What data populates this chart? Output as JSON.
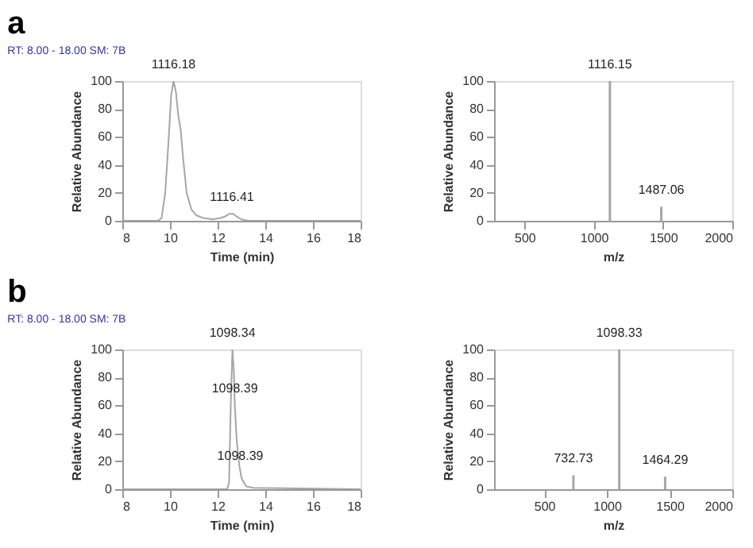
{
  "chart_data": [
    {
      "type": "line",
      "title": "a",
      "subtitle": "RT: 8.00 - 18.00    SM: 7B",
      "xlabel": "Time (min)",
      "ylabel": "Relative Abundance",
      "xlim": [
        8,
        18
      ],
      "xticks": [
        8,
        10,
        12,
        14,
        16,
        18
      ],
      "ylim": [
        0,
        100
      ],
      "yticks": [
        0,
        20,
        40,
        60,
        80,
        100
      ],
      "grid": false,
      "legend": false,
      "series": [
        {
          "color": "#a6a6a6",
          "x": [
            8,
            9.5,
            9.65,
            9.8,
            9.95,
            10.05,
            10.15,
            10.25,
            10.35,
            10.45,
            10.55,
            10.7,
            10.9,
            11.1,
            11.4,
            11.8,
            12.1,
            12.3,
            12.5,
            12.65,
            12.8,
            13.0,
            13.3,
            18
          ],
          "values": [
            0,
            0,
            2,
            20,
            60,
            90,
            100,
            92,
            75,
            65,
            45,
            20,
            8,
            4,
            2,
            1,
            2,
            3,
            5,
            5,
            3,
            1,
            0,
            0
          ]
        }
      ],
      "annotations": [
        {
          "text": "1116.18",
          "x": 10.15,
          "y": 100
        },
        {
          "text": "1116.41",
          "x": 12.6,
          "y": 5
        }
      ]
    },
    {
      "type": "bar",
      "xlabel": "m/z",
      "ylabel": "Relative Abundance",
      "xlim": [
        280,
        2000
      ],
      "xticks": [
        500,
        1000,
        1500,
        2000
      ],
      "ylim": [
        0,
        100
      ],
      "yticks": [
        0,
        20,
        40,
        60,
        80,
        100
      ],
      "grid": false,
      "legend": false,
      "series": [
        {
          "color": "#a6a6a6",
          "x": [
            1116.15,
            1487.06
          ],
          "values": [
            100,
            10
          ]
        }
      ],
      "annotations": [
        {
          "text": "1116.15",
          "x": 1116.15,
          "y": 100
        },
        {
          "text": "1487.06",
          "x": 1487.06,
          "y": 10
        }
      ]
    },
    {
      "type": "line",
      "title": "b",
      "subtitle": "RT: 8.00 - 18.00    SM: 7B",
      "xlabel": "Time (min)",
      "ylabel": "Relative Abundance",
      "xlim": [
        8,
        18
      ],
      "xticks": [
        8,
        10,
        12,
        14,
        16,
        18
      ],
      "ylim": [
        0,
        100
      ],
      "yticks": [
        0,
        20,
        40,
        60,
        80,
        100
      ],
      "grid": false,
      "legend": false,
      "series": [
        {
          "color": "#a6a6a6",
          "x": [
            8,
            12.4,
            12.48,
            12.55,
            12.62,
            12.68,
            12.72,
            12.8,
            12.9,
            13.0,
            13.2,
            13.5,
            18
          ],
          "values": [
            0,
            0,
            5,
            60,
            100,
            85,
            60,
            35,
            18,
            8,
            2,
            1,
            0
          ]
        }
      ],
      "annotations": [
        {
          "text": "1098.34",
          "x": 12.62,
          "y": 100
        },
        {
          "text": "1098.39",
          "x": 12.72,
          "y": 60
        },
        {
          "text": "1098.39",
          "x": 12.95,
          "y": 12
        }
      ]
    },
    {
      "type": "bar",
      "xlabel": "m/z",
      "ylabel": "Relative Abundance",
      "xlim": [
        100,
        2000
      ],
      "xticks": [
        500,
        1000,
        1500,
        2000
      ],
      "ylim": [
        0,
        100
      ],
      "yticks": [
        0,
        20,
        40,
        60,
        80,
        100
      ],
      "grid": false,
      "legend": false,
      "series": [
        {
          "color": "#a6a6a6",
          "x": [
            732.73,
            1098.33,
            1464.29
          ],
          "values": [
            10,
            100,
            9
          ]
        }
      ],
      "annotations": [
        {
          "text": "732.73",
          "x": 732.73,
          "y": 10
        },
        {
          "text": "1098.33",
          "x": 1098.33,
          "y": 100
        },
        {
          "text": "1464.29",
          "x": 1464.29,
          "y": 9
        }
      ]
    }
  ]
}
